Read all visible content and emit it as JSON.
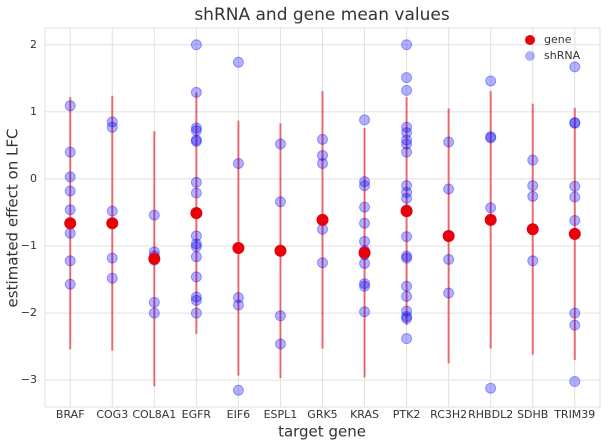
{
  "chart_data": {
    "type": "scatter",
    "title": "shRNA and gene mean values",
    "x_label": "target gene",
    "y_label": "estimated effect on LFC",
    "categories": [
      "BRAF",
      "COG3",
      "COL8A1",
      "EGFR",
      "EIF6",
      "ESPL1",
      "GRK5",
      "KRAS",
      "PTK2",
      "RC3H2",
      "RHBDL2",
      "SDHB",
      "TRIM39"
    ],
    "ylim": [
      -3.4,
      2.25
    ],
    "yticks": [
      {
        "value": -3,
        "label": "−3"
      },
      {
        "value": -2,
        "label": "−2"
      },
      {
        "value": -1,
        "label": "−1"
      },
      0,
      1,
      2
    ],
    "grid": true,
    "legend": "upper right",
    "series": [
      {
        "name": "gene",
        "color": "#e8000b",
        "values": [
          -0.66,
          -0.66,
          -1.19,
          -0.51,
          -1.03,
          -1.07,
          -0.61,
          -1.1,
          -0.48,
          -0.85,
          -0.61,
          -0.75,
          -0.82
        ],
        "errors": [
          1.88,
          1.9,
          1.9,
          1.8,
          1.9,
          1.9,
          1.92,
          1.86,
          1.7,
          1.9,
          1.92,
          1.87,
          1.88
        ]
      },
      {
        "name": "shRNA",
        "color": "#0000ff",
        "values": [
          [
            1.09,
            0.4,
            0.03,
            -0.18,
            -0.46,
            -0.81,
            -1.22,
            -1.57
          ],
          [
            0.85,
            0.77,
            -0.48,
            -1.18,
            -1.48
          ],
          [
            -0.54,
            -1.09,
            -1.15,
            -1.21,
            -1.84,
            -2.0
          ],
          [
            2.0,
            1.29,
            0.76,
            0.72,
            0.58,
            0.56,
            -0.05,
            -0.21,
            -0.5,
            -0.85,
            -0.97,
            -1.01,
            -1.16,
            -1.46,
            -1.76,
            -1.81,
            -2.0
          ],
          [
            1.74,
            0.23,
            -1.77,
            -1.88,
            -3.15
          ],
          [
            0.52,
            -0.34,
            -1.07,
            -2.04,
            -2.46
          ],
          [
            0.59,
            0.35,
            0.23,
            -0.75,
            -1.25
          ],
          [
            0.88,
            -0.04,
            -0.1,
            -0.42,
            -0.66,
            -0.93,
            -1.07,
            -1.13,
            -1.26,
            -1.56,
            -1.6,
            -1.98
          ],
          [
            2.0,
            1.51,
            1.32,
            0.77,
            0.69,
            0.58,
            0.52,
            0.4,
            -0.1,
            -0.2,
            -0.29,
            -0.46,
            -0.86,
            -1.15,
            -1.18,
            -1.6,
            -1.75,
            -1.97,
            -2.05,
            -2.08,
            -2.38
          ],
          [
            0.55,
            -0.15,
            -1.2,
            -1.7
          ],
          [
            1.46,
            0.63,
            0.61,
            -0.43,
            -3.12
          ],
          [
            0.28,
            -0.1,
            -0.26,
            -0.75,
            -1.22
          ],
          [
            1.67,
            0.84,
            0.83,
            -0.11,
            -0.27,
            -0.62,
            -2.0,
            -2.18,
            -3.02
          ]
        ]
      }
    ]
  }
}
